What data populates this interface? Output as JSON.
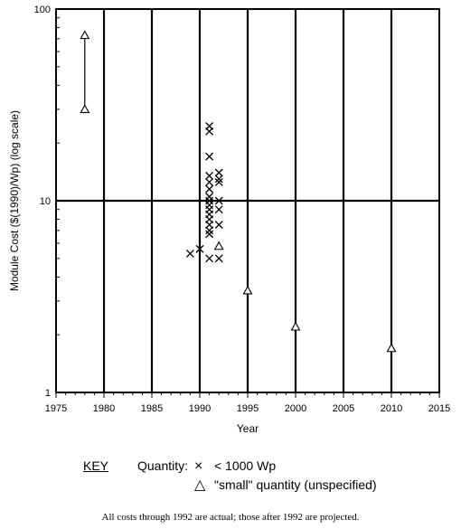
{
  "chart_data": {
    "type": "scatter",
    "ylabel": "Module Cost ($(1990)/Wp) (log scale)",
    "xlabel": "Year",
    "xlim": [
      1975,
      2015
    ],
    "ylim": [
      1,
      100
    ],
    "yscale": "log",
    "x_ticks": [
      "1975",
      "1980",
      "1985",
      "1990",
      "1995",
      "2000",
      "2005",
      "2010",
      "2015"
    ],
    "y_ticks": [
      "1",
      "10",
      "100"
    ],
    "grid": "vertical at each tick; horizontal at 10",
    "series": [
      {
        "name": "< 1000 Wp",
        "marker": "x",
        "points": [
          [
            1989,
            5.3
          ],
          [
            1990,
            5.6
          ],
          [
            1991,
            24.5
          ],
          [
            1991,
            23
          ],
          [
            1991,
            17
          ],
          [
            1991,
            13.5
          ],
          [
            1991,
            12.5
          ],
          [
            1991,
            11.5
          ],
          [
            1991,
            10.5
          ],
          [
            1991,
            10
          ],
          [
            1991,
            9.5
          ],
          [
            1991,
            9
          ],
          [
            1991,
            8.5
          ],
          [
            1991,
            8
          ],
          [
            1991,
            7.5
          ],
          [
            1991,
            7
          ],
          [
            1991,
            6.7
          ],
          [
            1991,
            5
          ],
          [
            1992,
            14
          ],
          [
            1992,
            13
          ],
          [
            1992,
            12.5
          ],
          [
            1992,
            10
          ],
          [
            1992,
            9
          ],
          [
            1992,
            7.5
          ],
          [
            1992,
            5
          ]
        ]
      },
      {
        "name": "\"small\" quantity (unspecified)",
        "marker": "triangle",
        "points": [
          [
            1978,
            73
          ],
          [
            1978,
            30
          ],
          [
            1992,
            5.8
          ],
          [
            1995,
            3.4
          ],
          [
            2000,
            2.2
          ],
          [
            2010,
            1.7
          ]
        ]
      }
    ],
    "range_line": {
      "x": 1978,
      "y": [
        73,
        30
      ]
    }
  },
  "key": {
    "title": "KEY",
    "heading": "Quantity:",
    "items": [
      {
        "symbol": "×",
        "label": "< 1000 Wp"
      },
      {
        "symbol": "△",
        "label": "\"small\" quantity (unspecified)"
      }
    ]
  },
  "footnote": "All costs through 1992 are actual; those after 1992 are projected."
}
